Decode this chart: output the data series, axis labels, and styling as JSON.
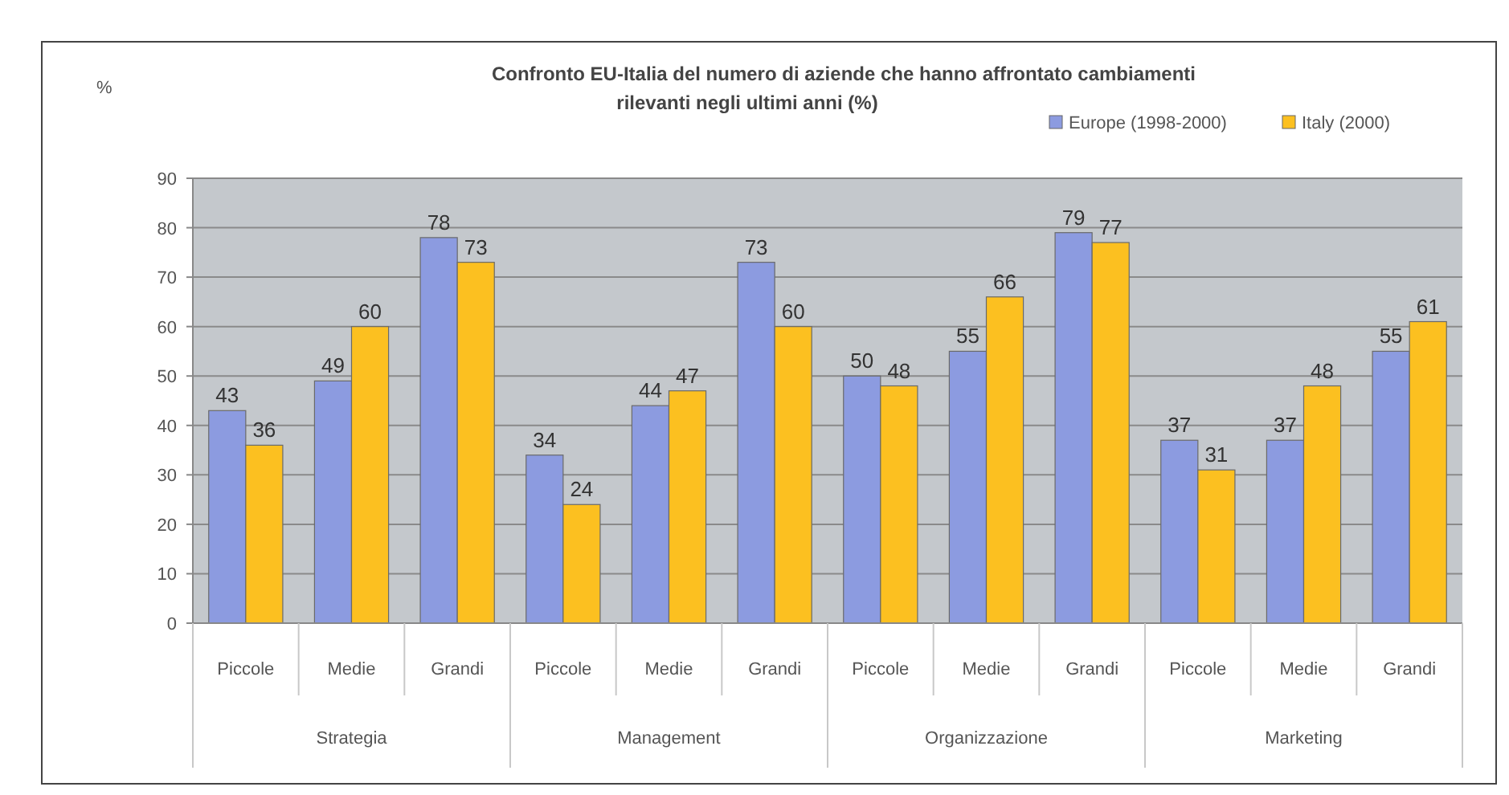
{
  "chart_data": {
    "type": "bar",
    "title": "Confronto EU-Italia del numero di aziende che hanno affrontato cambiamenti\nrilevanti negli ultimi anni (%)",
    "ylabel": "%",
    "categories": [
      "Piccole",
      "Medie",
      "Grandi",
      "Piccole",
      "Medie",
      "Grandi",
      "Piccole",
      "Medie",
      "Grandi",
      "Piccole",
      "Medie",
      "Grandi"
    ],
    "series": [
      {
        "name": "Europe (1998-2000)",
        "color": "#8c9be0",
        "values": [
          43,
          49,
          78,
          34,
          44,
          73,
          50,
          55,
          79,
          37,
          37,
          55
        ]
      },
      {
        "name": "Italy (2000)",
        "color": "#fcc020",
        "values": [
          36,
          60,
          73,
          24,
          47,
          60,
          48,
          66,
          77,
          31,
          48,
          61
        ]
      }
    ],
    "ylim": [
      0,
      90
    ],
    "yticks": [
      0,
      10,
      20,
      30,
      40,
      50,
      60,
      70,
      80,
      90
    ],
    "grid": "y",
    "legend": "top right",
    "data_labels": true,
    "annotations": [
      "Strategia",
      "Management",
      "Organizzazione",
      "Marketing"
    ]
  }
}
